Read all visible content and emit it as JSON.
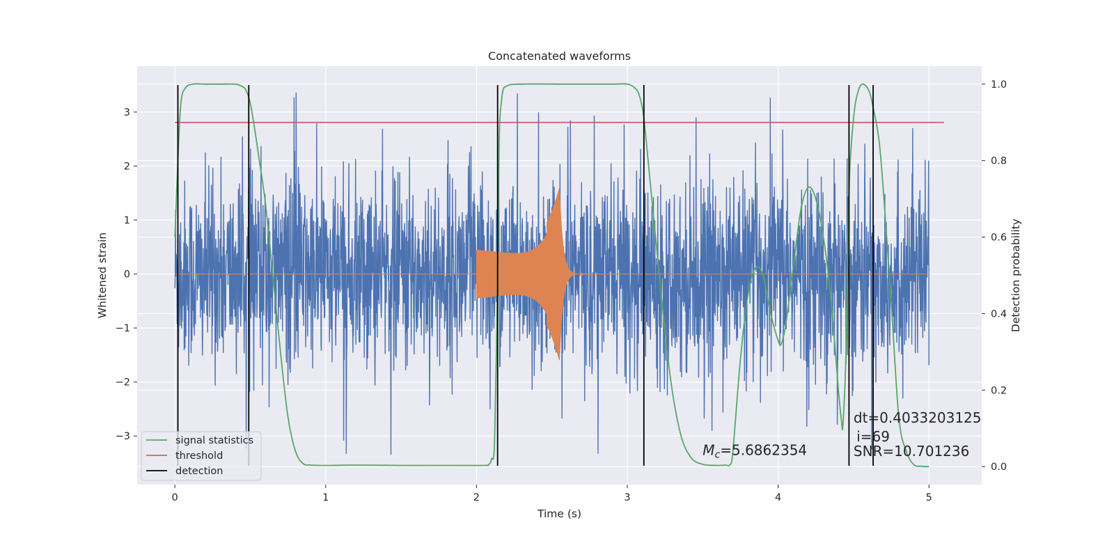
{
  "chart_data": {
    "type": "line",
    "title": "Concatenated waveforms",
    "xlabel": "Time (s)",
    "ylabel": "Whitened strain",
    "y2label": "Detection probability",
    "xlim": [
      -0.25,
      5.35
    ],
    "ylim": [
      -3.9,
      3.85
    ],
    "y2lim": [
      -0.047,
      1.047
    ],
    "xticks": [
      0,
      1,
      2,
      3,
      4,
      5
    ],
    "yticks": [
      -3,
      -2,
      -1,
      0,
      1,
      2,
      3
    ],
    "y2ticks": [
      0.0,
      0.2,
      0.4,
      0.6,
      0.8,
      1.0
    ],
    "grid": true,
    "legend_position": "lower-left",
    "colors": {
      "noise": "#4c72b0",
      "waveform": "#dd8452",
      "signal_statistics": "#55a868",
      "threshold": "#c44e52",
      "detection": "#000000",
      "axes_background": "#eaeaf2",
      "grid": "#ffffff"
    },
    "noise_series": {
      "axis": "left",
      "x_range": [
        0,
        5
      ],
      "typical_amplitude": 2.0,
      "peak_amplitude": 3.5
    },
    "waveform_series": {
      "axis": "left",
      "x_start": 2.0,
      "x_merger": 2.55,
      "x_end": 2.85,
      "start_amplitude": 0.45,
      "peak_amplitude": 1.6
    },
    "signal_statistics": {
      "name": "signal statistics",
      "axis": "right",
      "x": [
        0.0,
        0.02,
        0.04,
        0.07,
        0.12,
        0.2,
        0.3,
        0.4,
        0.44,
        0.47,
        0.5,
        0.53,
        0.56,
        0.6,
        0.65,
        0.7,
        0.75,
        0.8,
        0.85,
        0.9,
        1.0,
        1.2,
        1.5,
        1.8,
        2.05,
        2.08,
        2.1,
        2.12,
        2.14,
        2.15,
        2.17,
        2.2,
        2.3,
        2.6,
        2.9,
        3.0,
        3.05,
        3.08,
        3.11,
        3.15,
        3.2,
        3.28,
        3.35,
        3.42,
        3.5,
        3.6,
        3.65,
        3.68,
        3.7,
        3.75,
        3.8,
        3.85,
        3.9,
        3.95,
        4.0,
        4.02,
        4.05,
        4.1,
        4.15,
        4.2,
        4.25,
        4.3,
        4.35,
        4.4,
        4.42,
        4.43,
        4.45,
        4.47,
        4.5,
        4.53,
        4.56,
        4.6,
        4.63,
        4.67,
        4.7,
        4.75,
        4.8,
        4.85,
        4.9,
        4.95,
        5.0
      ],
      "y": [
        0.6,
        0.8,
        0.95,
        0.99,
        1.0,
        1.0,
        1.0,
        1.0,
        0.995,
        0.985,
        0.95,
        0.88,
        0.8,
        0.69,
        0.5,
        0.3,
        0.13,
        0.04,
        0.008,
        0.004,
        0.003,
        0.004,
        0.003,
        0.003,
        0.003,
        0.005,
        0.02,
        0.07,
        0.5,
        0.85,
        0.97,
        0.995,
        1.0,
        1.0,
        1.0,
        1.0,
        0.99,
        0.97,
        0.91,
        0.75,
        0.55,
        0.25,
        0.09,
        0.025,
        0.006,
        0.003,
        0.004,
        0.005,
        0.04,
        0.28,
        0.45,
        0.52,
        0.5,
        0.4,
        0.33,
        0.32,
        0.37,
        0.52,
        0.67,
        0.73,
        0.7,
        0.6,
        0.44,
        0.2,
        0.12,
        0.11,
        0.3,
        0.72,
        0.91,
        0.98,
        1.0,
        0.985,
        0.94,
        0.85,
        0.71,
        0.43,
        0.13,
        0.04,
        0.005,
        0.001,
        0.0
      ]
    },
    "threshold": {
      "name": "threshold",
      "axis": "right",
      "value": 0.9,
      "x_range": [
        0,
        5.1
      ]
    },
    "detection": {
      "name": "detection",
      "x": [
        0.02,
        0.49,
        2.14,
        3.11,
        4.47,
        4.63
      ],
      "y_range": [
        -3.55,
        3.5
      ]
    },
    "annotations": [
      {
        "text": "=5.6862354",
        "math_prefix_base": "M",
        "math_prefix_sub": "c",
        "x": 3.5,
        "y": -3.35
      },
      {
        "text": "dt=0.4033203125",
        "x": 4.5,
        "y": -2.75
      },
      {
        "text": "i=69",
        "x": 4.52,
        "y": -3.1
      },
      {
        "text": "SNR=10.701236",
        "x": 4.5,
        "y": -3.37
      }
    ],
    "legend": [
      {
        "label": "signal statistics",
        "series": "signal_statistics"
      },
      {
        "label": "threshold",
        "series": "threshold"
      },
      {
        "label": "detection",
        "series": "detection"
      }
    ]
  }
}
